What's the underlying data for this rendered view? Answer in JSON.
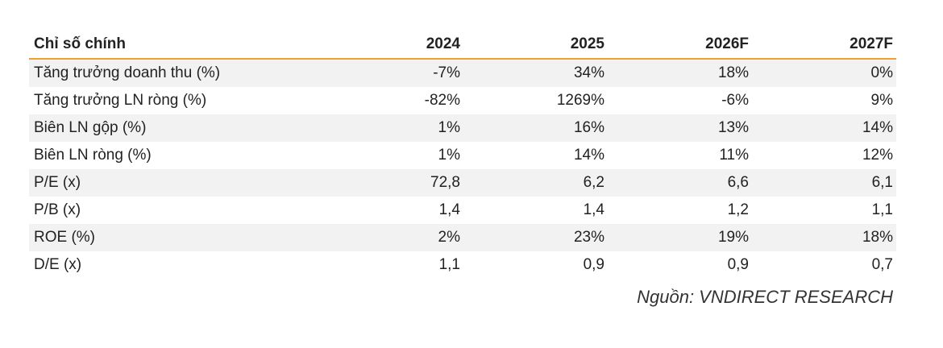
{
  "table": {
    "header": {
      "label": "Chỉ số chính",
      "years": [
        "2024",
        "2025",
        "2026F",
        "2027F"
      ]
    },
    "rows": [
      {
        "label": "Tăng trưởng doanh thu (%)",
        "values": [
          "-7%",
          "34%",
          "18%",
          "0%"
        ],
        "shaded": true
      },
      {
        "label": "Tăng trưởng LN ròng (%)",
        "values": [
          "-82%",
          "1269%",
          "-6%",
          "9%"
        ],
        "shaded": false
      },
      {
        "label": "Biên LN gộp (%)",
        "values": [
          "1%",
          "16%",
          "13%",
          "14%"
        ],
        "shaded": true
      },
      {
        "label": "Biên LN ròng (%)",
        "values": [
          "1%",
          "14%",
          "11%",
          "12%"
        ],
        "shaded": false
      },
      {
        "label": "P/E (x)",
        "values": [
          "72,8",
          "6,2",
          "6,6",
          "6,1"
        ],
        "shaded": true
      },
      {
        "label": "P/B (x)",
        "values": [
          "1,4",
          "1,4",
          "1,2",
          "1,1"
        ],
        "shaded": false
      },
      {
        "label": "ROE (%)",
        "values": [
          "2%",
          "23%",
          "19%",
          "18%"
        ],
        "shaded": true
      },
      {
        "label": "D/E (x)",
        "values": [
          "1,1",
          "0,9",
          "0,9",
          "0,7"
        ],
        "shaded": false
      }
    ]
  },
  "source": "Nguồn: VNDIRECT RESEARCH",
  "colors": {
    "header_rule": "#f0a030",
    "row_shade": "#f2f2f2"
  }
}
